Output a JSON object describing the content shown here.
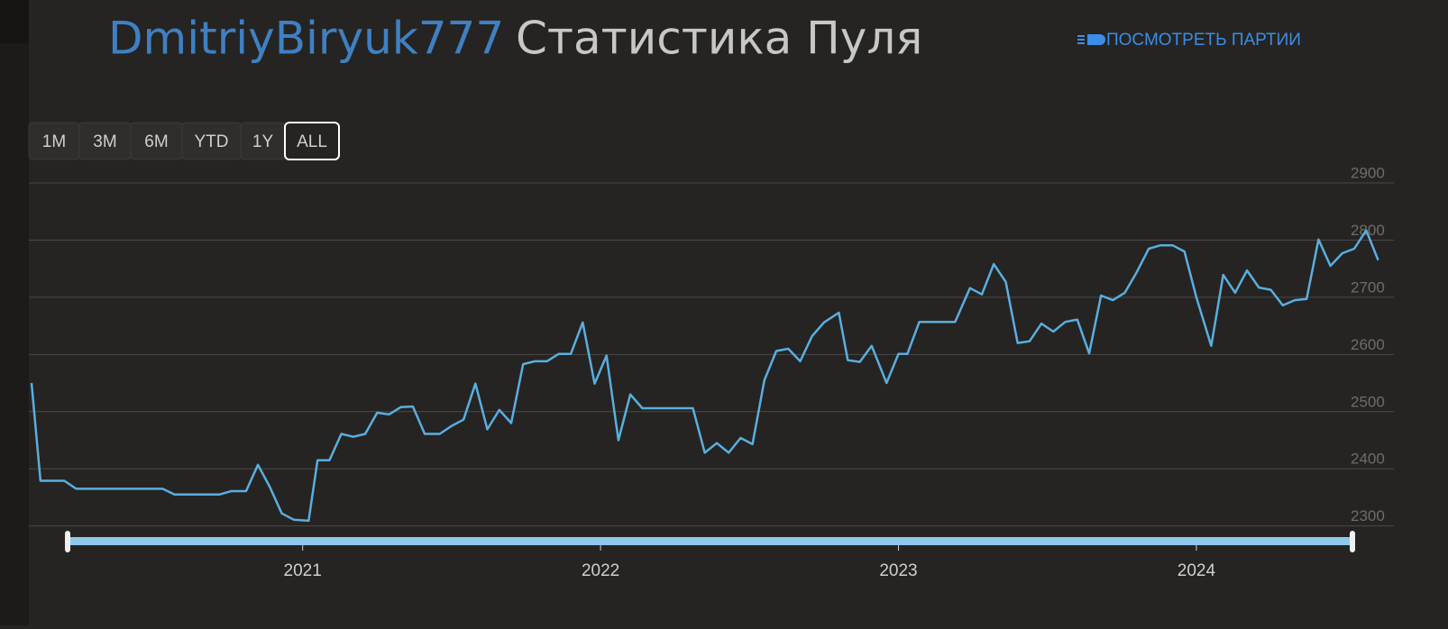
{
  "header": {
    "username": "DmitriyBiryuk777",
    "title": "Статистика Пуля",
    "link": "ПОСМОТРЕТЬ ПАРТИИ"
  },
  "range_buttons": [
    "1M",
    "3M",
    "6M",
    "YTD",
    "1Y",
    "ALL"
  ],
  "chart_data": {
    "type": "line",
    "color": "#5aaee0",
    "grid": true,
    "xlim": [
      2020.09,
      2024.66
    ],
    "xticks": [
      2021,
      2022,
      2023,
      2024
    ],
    "ylim": [
      2290,
      2900
    ],
    "yticks": [
      2300,
      2400,
      2500,
      2600,
      2700,
      2800,
      2900
    ],
    "x": [
      2020.09,
      2020.12,
      2020.2,
      2020.24,
      2020.53,
      2020.57,
      2020.72,
      2020.76,
      2020.81,
      2020.85,
      2020.89,
      2020.93,
      2020.97,
      2021.02,
      2021.05,
      2021.09,
      2021.13,
      2021.17,
      2021.21,
      2021.25,
      2021.29,
      2021.33,
      2021.37,
      2021.41,
      2021.46,
      2021.5,
      2021.54,
      2021.58,
      2021.62,
      2021.66,
      2021.7,
      2021.74,
      2021.78,
      2021.82,
      2021.86,
      2021.9,
      2021.94,
      2021.98,
      2022.02,
      2022.06,
      2022.1,
      2022.14,
      2022.18,
      2022.31,
      2022.35,
      2022.39,
      2022.43,
      2022.47,
      2022.51,
      2022.55,
      2022.59,
      2022.63,
      2022.67,
      2022.71,
      2022.75,
      2022.8,
      2022.83,
      2022.87,
      2022.91,
      2022.96,
      2023.0,
      2023.03,
      2023.07,
      2023.19,
      2023.24,
      2023.28,
      2023.32,
      2023.36,
      2023.4,
      2023.44,
      2023.48,
      2023.52,
      2023.56,
      2023.6,
      2023.64,
      2023.68,
      2023.72,
      2023.76,
      2023.8,
      2023.84,
      2023.88,
      2023.92,
      2023.96,
      2024.0,
      2024.05,
      2024.09,
      2024.13,
      2024.17,
      2024.21,
      2024.25,
      2024.29,
      2024.33,
      2024.37,
      2024.41,
      2024.45,
      2024.49,
      2024.53,
      2024.57,
      2024.61
    ],
    "values": [
      2550,
      2379,
      2379,
      2365,
      2365,
      2355,
      2355,
      2361,
      2361,
      2407,
      2368,
      2322,
      2311,
      2309,
      2415,
      2415,
      2461,
      2456,
      2461,
      2498,
      2495,
      2508,
      2509,
      2461,
      2461,
      2475,
      2486,
      2549,
      2469,
      2503,
      2480,
      2583,
      2588,
      2588,
      2601,
      2601,
      2656,
      2549,
      2598,
      2450,
      2530,
      2506,
      2506,
      2506,
      2428,
      2445,
      2428,
      2454,
      2443,
      2555,
      2606,
      2610,
      2588,
      2632,
      2656,
      2673,
      2590,
      2587,
      2615,
      2550,
      2601,
      2601,
      2657,
      2657,
      2716,
      2705,
      2758,
      2727,
      2620,
      2623,
      2654,
      2640,
      2657,
      2661,
      2602,
      2703,
      2695,
      2708,
      2744,
      2785,
      2791,
      2791,
      2780,
      2700,
      2615,
      2739,
      2708,
      2747,
      2717,
      2713,
      2686,
      2695,
      2697,
      2801,
      2755,
      2777,
      2785,
      2817,
      2765
    ]
  }
}
